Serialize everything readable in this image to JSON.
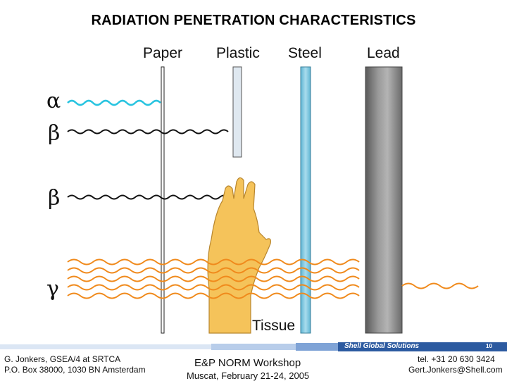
{
  "title": "RADIATION PENETRATION CHARACTERISTICS",
  "barriers": {
    "paper": "Paper",
    "plastic": "Plastic",
    "steel": "Steel",
    "lead": "Lead"
  },
  "radiation": {
    "alpha": "α",
    "beta1": "β",
    "beta2": "β",
    "gamma": "γ"
  },
  "tissue_label": "Tissue",
  "colors": {
    "alpha": "#29c4e0",
    "beta": "#111111",
    "gamma": "#f08a1c",
    "hand": "#f5c35a",
    "steel": "#7ec8e0",
    "brand": "#2c5aa0"
  },
  "footer": {
    "left_line1": "G. Jonkers, GSEA/4 at SRTCA",
    "left_line2": "P.O. Box 38000, 1030 BN Amsterdam",
    "center_line1": "E&P NORM Workshop",
    "center_line2": "Muscat, February 21-24, 2005",
    "right_line1": "tel. +31 20 630 3424",
    "right_line2": "Gert.Jonkers@Shell.com",
    "brand": "Shell Global Solutions",
    "page_number": "10"
  }
}
